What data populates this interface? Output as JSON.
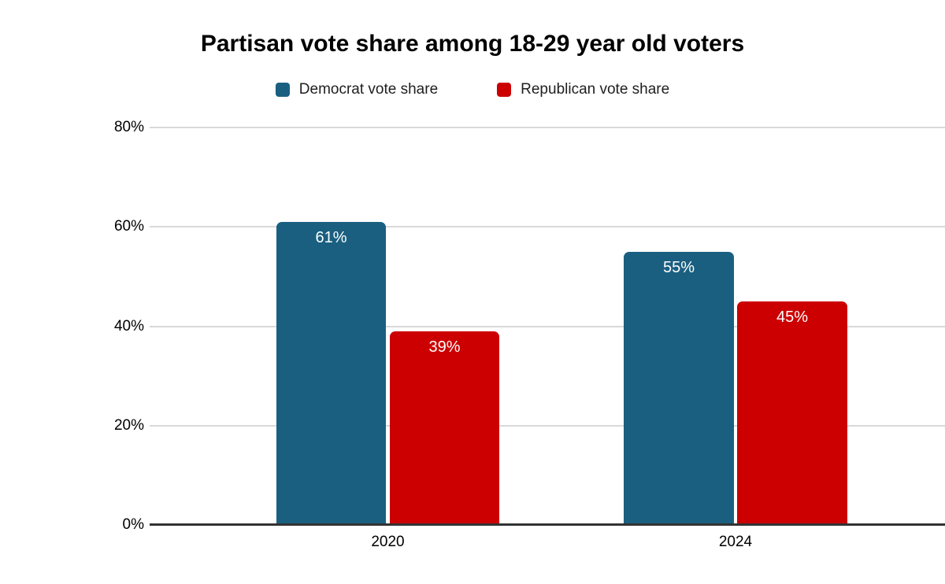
{
  "chart_data": {
    "type": "bar",
    "title": "Partisan vote share among 18-29 year old voters",
    "categories": [
      "2020",
      "2024"
    ],
    "series": [
      {
        "name": "Democrat vote share",
        "color": "#1A5F80",
        "values": [
          61,
          55
        ],
        "labels": [
          "61%",
          "55%"
        ]
      },
      {
        "name": "Republican vote share",
        "color": "#CC0000",
        "values": [
          39,
          45
        ],
        "labels": [
          "39%",
          "45%"
        ]
      }
    ],
    "xlabel": "",
    "ylabel": "",
    "ylim": [
      0,
      80
    ],
    "y_ticks": [
      "80%",
      "60%",
      "40%",
      "20%",
      "0%"
    ],
    "y_tick_values": [
      80,
      60,
      40,
      20,
      0
    ],
    "grid": "horizontal",
    "legend_position": "top",
    "bar_label_color": "#FFFFFF",
    "gridline_color": "#D9D9D9",
    "axis_color": "#333333",
    "background_color": "#FFFFFF"
  }
}
